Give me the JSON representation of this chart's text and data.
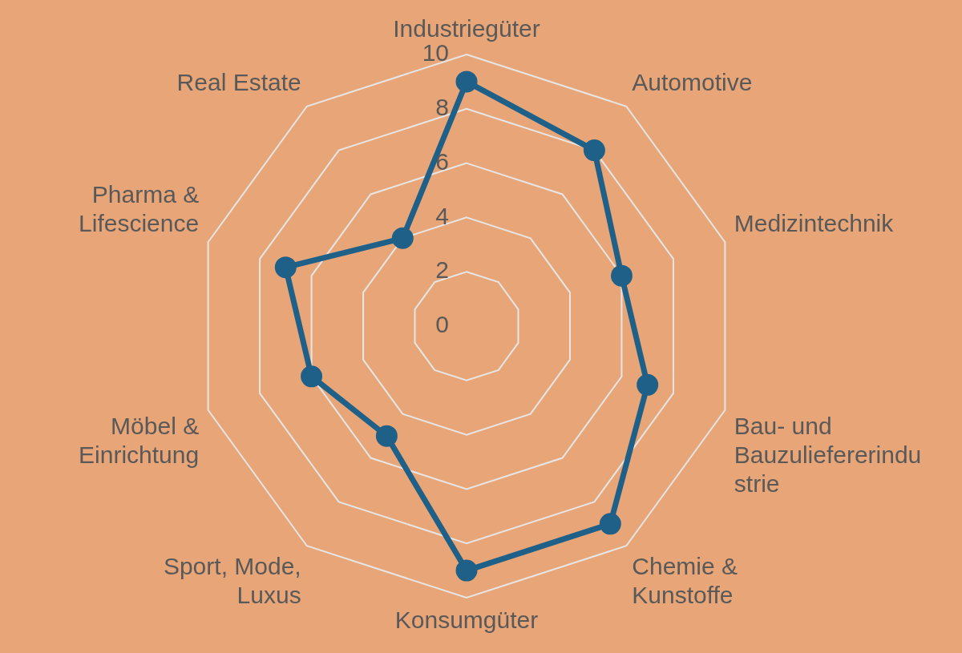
{
  "chart_data": {
    "type": "radar",
    "categories": [
      "Industriegüter",
      "Automotive",
      "Medizintechnik",
      "Bau- und Bauzuliefererindustrie",
      "Chemie & Kunstoffe",
      "Konsumgüter",
      "Sport, Mode, Luxus",
      "Möbel & Einrichtung",
      "Pharma & Lifescience",
      "Real Estate"
    ],
    "series": [
      {
        "color": "#1f6088",
        "values": [
          9,
          8,
          6,
          7,
          9,
          9,
          5,
          6,
          7,
          4
        ]
      }
    ],
    "ylim": [
      0,
      10
    ],
    "yticks": [
      0,
      2,
      4,
      6,
      8,
      10
    ],
    "grid": true,
    "legend": false,
    "marker": "circle",
    "line_style": "solid"
  }
}
